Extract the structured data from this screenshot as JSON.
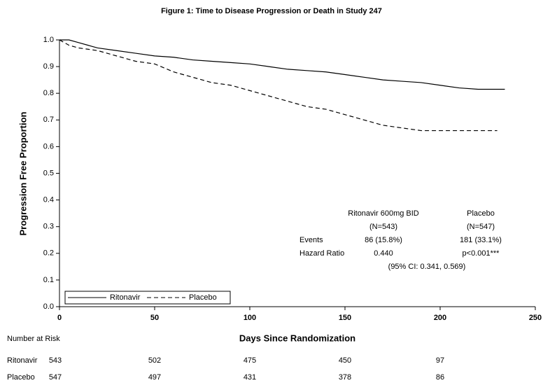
{
  "chart_data": {
    "type": "line",
    "title": "Figure 1: Time to Disease Progression or Death in Study 247",
    "x_label": "Days Since Randomization",
    "y_label": "Progression Free Proportion",
    "xlim": [
      0,
      250
    ],
    "xticks": [
      0,
      50,
      100,
      150,
      200,
      250
    ],
    "ylim": [
      0,
      1
    ],
    "yticks": [
      {
        "value": 0,
        "label": "0.0"
      },
      0.1,
      0.2,
      0.3,
      0.4,
      0.5,
      0.6,
      0.7,
      0.8,
      0.9,
      {
        "value": 1,
        "label": "1.0"
      }
    ],
    "legend": "lower left",
    "series": [
      {
        "name": "Ritonavir",
        "color": "#000000",
        "dash": "solid",
        "x": [
          0,
          5,
          10,
          15,
          20,
          30,
          40,
          50,
          60,
          70,
          80,
          90,
          100,
          110,
          120,
          130,
          140,
          150,
          160,
          170,
          180,
          190,
          200,
          210,
          220,
          234
        ],
        "values": [
          1.0,
          1.0,
          0.99,
          0.98,
          0.97,
          0.96,
          0.95,
          0.94,
          0.935,
          0.925,
          0.92,
          0.915,
          0.91,
          0.9,
          0.89,
          0.885,
          0.88,
          0.87,
          0.86,
          0.85,
          0.845,
          0.84,
          0.83,
          0.82,
          0.815,
          0.815
        ]
      },
      {
        "name": "Placebo",
        "color": "#000000",
        "dash": "dashed",
        "x": [
          0,
          5,
          10,
          20,
          30,
          40,
          50,
          60,
          70,
          80,
          90,
          100,
          110,
          120,
          130,
          140,
          150,
          160,
          170,
          180,
          190,
          200,
          230
        ],
        "values": [
          1.0,
          0.98,
          0.97,
          0.96,
          0.94,
          0.92,
          0.91,
          0.88,
          0.86,
          0.84,
          0.83,
          0.81,
          0.79,
          0.77,
          0.75,
          0.74,
          0.72,
          0.7,
          0.68,
          0.67,
          0.66,
          0.66,
          0.66
        ]
      }
    ],
    "stats": {
      "columns": [
        {
          "label": "Ritonavir 600mg BID",
          "n": "(N=543)"
        },
        {
          "label": "Placebo",
          "n": "(N=547)"
        }
      ],
      "rows": [
        {
          "label": "Events",
          "cells": [
            "86 (15.8%)",
            "181 (33.1%)"
          ]
        },
        {
          "label": "Hazard Ratio",
          "cells": [
            "0.440",
            "p<0.001***"
          ]
        }
      ],
      "ci": "(95% CI: 0.341, 0.569)"
    },
    "risk_table": {
      "title": "Number at Risk",
      "rows": [
        {
          "name": "Ritonavir",
          "values": [
            543,
            502,
            475,
            450,
            97
          ]
        },
        {
          "name": "Placebo",
          "values": [
            547,
            497,
            431,
            378,
            86
          ]
        }
      ]
    }
  }
}
